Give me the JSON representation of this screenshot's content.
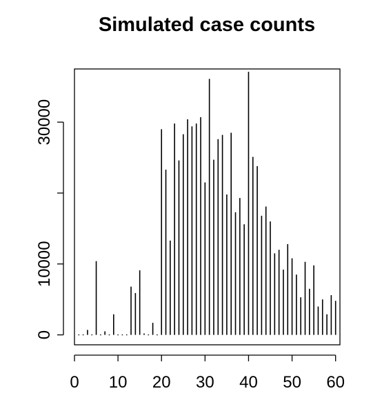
{
  "chart_data": {
    "type": "bar",
    "title": "Simulated case counts",
    "xlabel": "",
    "ylabel": "",
    "xlim": [
      0,
      61
    ],
    "ylim": [
      -1400,
      37500
    ],
    "grid": false,
    "legend": "none",
    "x_ticks": [
      0,
      10,
      20,
      30,
      40,
      50,
      60
    ],
    "y_ticks": [
      0,
      10000,
      20000,
      30000
    ],
    "y_tick_labels_shown": [
      "0",
      "10000",
      "",
      "30000"
    ],
    "x": [
      1,
      2,
      3,
      4,
      5,
      6,
      7,
      8,
      9,
      10,
      11,
      12,
      13,
      14,
      15,
      16,
      17,
      18,
      19,
      20,
      21,
      22,
      23,
      24,
      25,
      26,
      27,
      28,
      29,
      30,
      31,
      32,
      33,
      34,
      35,
      36,
      37,
      38,
      39,
      40,
      41,
      42,
      43,
      44,
      45,
      46,
      47,
      48,
      49,
      50,
      51,
      52,
      53,
      54,
      55,
      56,
      57,
      58,
      59,
      60
    ],
    "values": [
      0,
      0,
      700,
      0,
      10400,
      0,
      500,
      0,
      2900,
      0,
      0,
      0,
      6800,
      5900,
      9100,
      200,
      0,
      1700,
      0,
      29000,
      23300,
      13300,
      29800,
      24600,
      28300,
      30400,
      29400,
      29800,
      30700,
      21500,
      36100,
      24700,
      27600,
      28200,
      19800,
      28500,
      17300,
      19300,
      15600,
      37100,
      25100,
      23800,
      16800,
      18100,
      16000,
      11500,
      12000,
      9200,
      12800,
      10800,
      8500,
      5300,
      10300,
      6500,
      9800,
      4000,
      5000,
      2900,
      5600,
      4800
    ],
    "colors": {
      "line": "#000000",
      "background": "#ffffff"
    }
  }
}
